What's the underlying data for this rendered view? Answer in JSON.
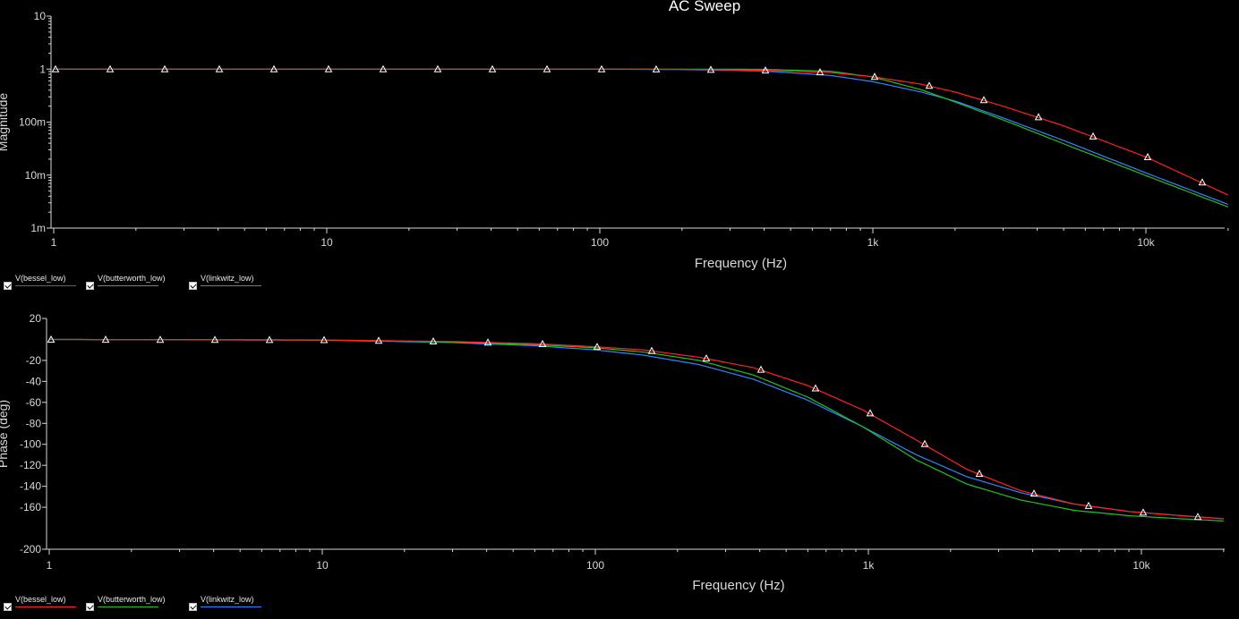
{
  "title": "AC Sweep",
  "series_legend": [
    {
      "name": "V(bessel_low)",
      "color": "#ff2020"
    },
    {
      "name": "V(butterworth_low)",
      "color": "#22c022"
    },
    {
      "name": "V(linkwitz_low)",
      "color": "#2e86ff"
    }
  ],
  "chart_data": [
    {
      "type": "line",
      "title": "AC Sweep",
      "xlabel": "Frequency (Hz)",
      "ylabel": "Magnitude",
      "xscale": "log",
      "yscale": "log",
      "xlim": [
        1,
        20000
      ],
      "ylim": [
        0.001,
        10
      ],
      "x_ticks": [
        {
          "value": 1,
          "label": "1"
        },
        {
          "value": 10,
          "label": "10"
        },
        {
          "value": 100,
          "label": "100"
        },
        {
          "value": 1000,
          "label": "1k"
        },
        {
          "value": 10000,
          "label": "10k"
        }
      ],
      "y_ticks": [
        {
          "value": 10,
          "label": "10"
        },
        {
          "value": 1,
          "label": "1"
        },
        {
          "value": 0.1,
          "label": "100m"
        },
        {
          "value": 0.01,
          "label": "10m"
        },
        {
          "value": 0.001,
          "label": "1m"
        }
      ],
      "grid": false,
      "series": [
        {
          "name": "V(bessel_low)",
          "color": "#ff2020",
          "markers": true,
          "x": [
            1,
            10,
            100,
            200,
            400,
            700,
            1000,
            1500,
            2000,
            3000,
            5000,
            10000,
            20000
          ],
          "y": [
            1,
            1,
            1,
            0.99,
            0.95,
            0.86,
            0.72,
            0.52,
            0.37,
            0.2,
            0.085,
            0.022,
            0.0042
          ]
        },
        {
          "name": "V(butterworth_low)",
          "color": "#22c022",
          "markers": false,
          "x": [
            1,
            10,
            100,
            200,
            400,
            700,
            1000,
            1500,
            2000,
            3000,
            5000,
            10000,
            20000
          ],
          "y": [
            1,
            1,
            1,
            1,
            0.99,
            0.91,
            0.71,
            0.41,
            0.24,
            0.11,
            0.039,
            0.0098,
            0.0025
          ]
        },
        {
          "name": "V(linkwitz_low)",
          "color": "#2e86ff",
          "markers": false,
          "x": [
            1,
            10,
            100,
            200,
            400,
            700,
            1000,
            1500,
            2000,
            3000,
            5000,
            10000,
            20000
          ],
          "y": [
            1,
            1,
            0.999,
            0.98,
            0.92,
            0.76,
            0.58,
            0.37,
            0.25,
            0.12,
            0.045,
            0.011,
            0.0028
          ]
        }
      ]
    },
    {
      "type": "line",
      "title": "",
      "xlabel": "Frequency (Hz)",
      "ylabel": "Phase (deg)",
      "xscale": "log",
      "yscale": "linear",
      "xlim": [
        1,
        20000
      ],
      "ylim": [
        -200,
        20
      ],
      "x_ticks": [
        {
          "value": 1,
          "label": "1"
        },
        {
          "value": 10,
          "label": "10"
        },
        {
          "value": 100,
          "label": "100"
        },
        {
          "value": 1000,
          "label": "1k"
        },
        {
          "value": 10000,
          "label": "10k"
        }
      ],
      "y_ticks": [
        {
          "value": 20,
          "label": "20"
        },
        {
          "value": -20,
          "label": "-20"
        },
        {
          "value": -40,
          "label": "-40"
        },
        {
          "value": -60,
          "label": "-60"
        },
        {
          "value": -80,
          "label": "-80"
        },
        {
          "value": -100,
          "label": "-100"
        },
        {
          "value": -120,
          "label": "-120"
        },
        {
          "value": -140,
          "label": "-140"
        },
        {
          "value": -160,
          "label": "-160"
        },
        {
          "value": -200,
          "label": "-200"
        }
      ],
      "grid": false,
      "series": [
        {
          "name": "V(bessel_low)",
          "color": "#ff2020",
          "markers": true,
          "x": [
            1,
            10,
            30,
            60,
            100,
            150,
            240,
            380,
            600,
            950,
            1500,
            2300,
            3600,
            5700,
            9000,
            14000,
            20000
          ],
          "y": [
            0,
            -0.5,
            -2,
            -4,
            -7,
            -10,
            -17,
            -27,
            -44,
            -67,
            -96,
            -124,
            -144,
            -157,
            -164,
            -168,
            -171
          ]
        },
        {
          "name": "V(butterworth_low)",
          "color": "#22c022",
          "markers": false,
          "x": [
            1,
            10,
            30,
            60,
            100,
            150,
            240,
            380,
            600,
            950,
            1500,
            2300,
            3600,
            5700,
            9000,
            14000,
            20000
          ],
          "y": [
            0,
            -0.6,
            -2.5,
            -5,
            -8,
            -12,
            -20,
            -34,
            -55,
            -83,
            -115,
            -138,
            -153,
            -163,
            -168,
            -171,
            -173
          ]
        },
        {
          "name": "V(linkwitz_low)",
          "color": "#2e86ff",
          "markers": false,
          "x": [
            1,
            10,
            30,
            60,
            100,
            150,
            240,
            380,
            600,
            950,
            1500,
            2300,
            3600,
            5700,
            9000,
            14000,
            20000
          ],
          "y": [
            0,
            -0.7,
            -3,
            -6,
            -10,
            -15,
            -24,
            -38,
            -58,
            -83,
            -110,
            -131,
            -146,
            -157,
            -164,
            -168,
            -171
          ]
        }
      ]
    }
  ]
}
